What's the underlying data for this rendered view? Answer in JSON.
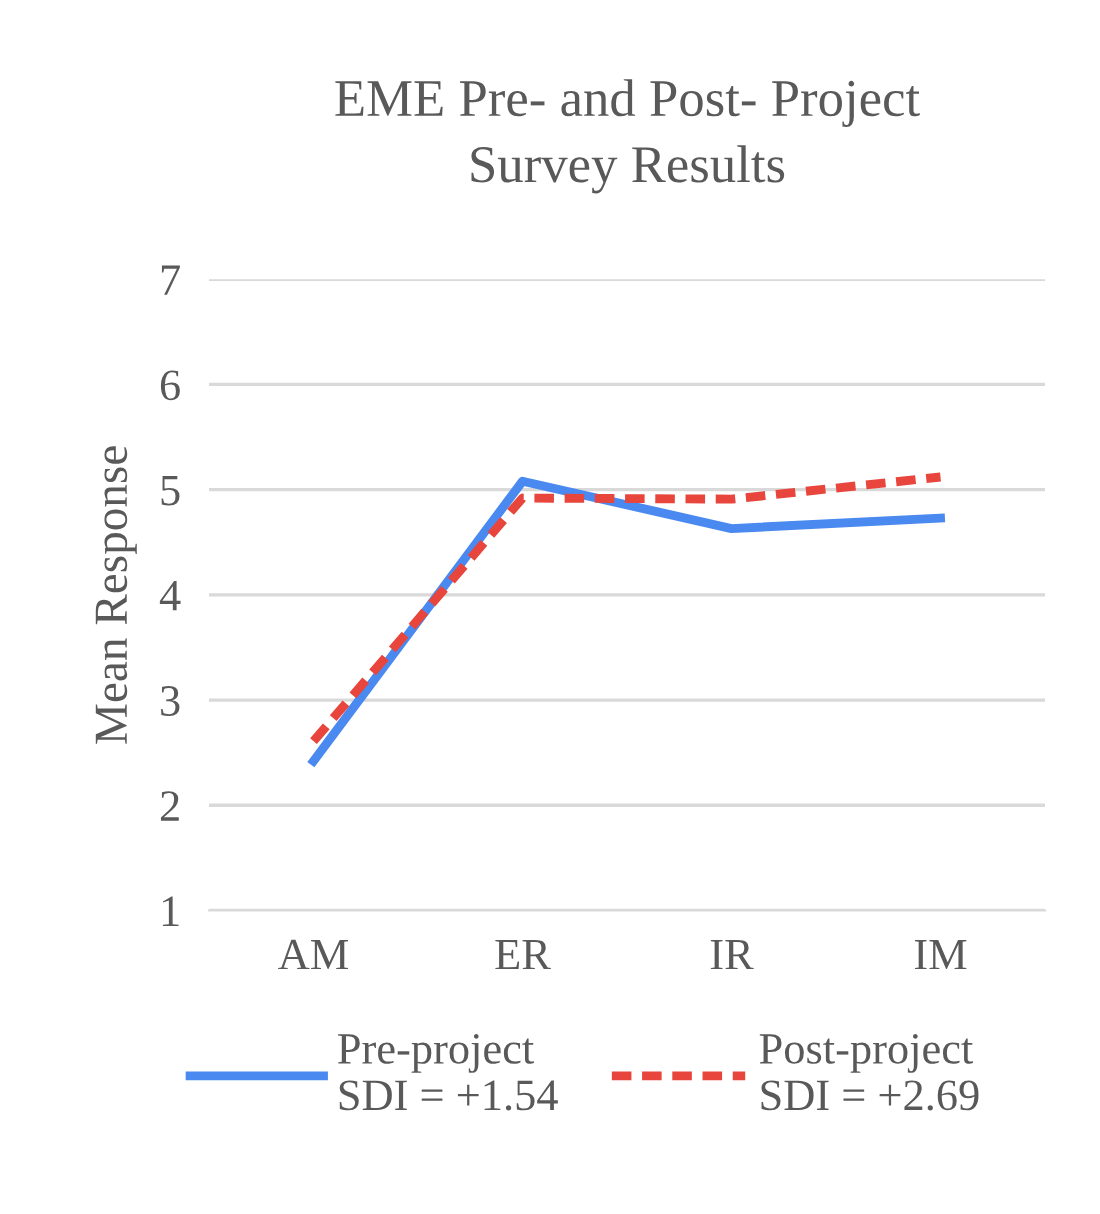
{
  "chart_data": {
    "type": "line",
    "title": "EME Pre- and Post- Project\nSurvey Results",
    "ylabel": "Mean Response",
    "categories": [
      "AM",
      "ER",
      "IR",
      "IM"
    ],
    "series": [
      {
        "name": "Pre-project\nSDI = +1.54",
        "color": "#4a8af0",
        "values": [
          2.42,
          5.08,
          4.63,
          4.73
        ],
        "line_style": "solid"
      },
      {
        "name": "Post-project\nSDI = +2.69",
        "color": "#e8453c",
        "values": [
          2.61,
          4.92,
          4.91,
          5.12
        ],
        "line_style": "dashed"
      }
    ],
    "ylim": [
      1,
      7
    ],
    "yticks": [
      1,
      2,
      3,
      4,
      5,
      6,
      7
    ],
    "grid": "y",
    "legend": "bottom",
    "marker": "none"
  }
}
